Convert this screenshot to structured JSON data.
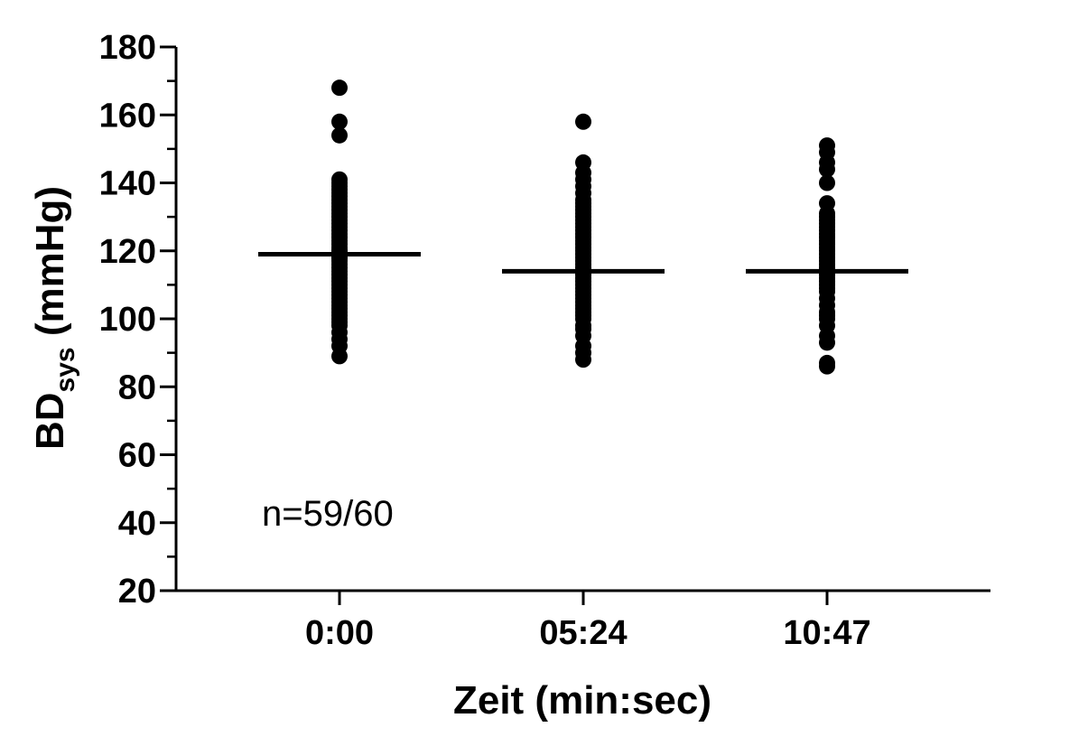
{
  "chart_data": {
    "type": "scatter",
    "xlabel": "Zeit (min:sec)",
    "ylabel": {
      "main": "BD",
      "sub": "sys",
      "unit": " (mmHg)"
    },
    "ylim": [
      20,
      180
    ],
    "yticks": [
      "20",
      "40",
      "60",
      "80",
      "100",
      "120",
      "140",
      "160",
      "180"
    ],
    "categories": [
      "0:00",
      "05:24",
      "10:47"
    ],
    "annotation": "n=59/60",
    "grid": false,
    "legend": "none",
    "point_color": "#000000",
    "series": [
      {
        "category": "0:00",
        "mean": 119,
        "values": [
          89,
          92,
          94,
          96,
          98,
          99,
          100,
          101,
          102,
          103,
          104,
          105,
          106,
          107,
          108,
          109,
          110,
          111,
          112,
          113,
          114,
          115,
          116,
          117,
          118,
          118,
          119,
          119,
          120,
          120,
          121,
          122,
          123,
          124,
          125,
          126,
          127,
          128,
          129,
          130,
          131,
          132,
          133,
          134,
          135,
          136,
          137,
          138,
          139,
          140,
          141,
          154,
          158,
          168
        ]
      },
      {
        "category": "05:24",
        "mean": 114,
        "values": [
          88,
          90,
          92,
          95,
          97,
          98,
          100,
          101,
          102,
          103,
          104,
          105,
          106,
          107,
          108,
          109,
          110,
          111,
          112,
          113,
          114,
          114,
          115,
          116,
          117,
          118,
          119,
          120,
          121,
          122,
          123,
          124,
          125,
          126,
          127,
          128,
          129,
          130,
          131,
          132,
          133,
          134,
          135,
          137,
          139,
          141,
          143,
          146,
          158
        ]
      },
      {
        "category": "10:47",
        "mean": 114,
        "values": [
          86,
          87,
          93,
          95,
          98,
          100,
          101,
          102,
          104,
          106,
          108,
          109,
          110,
          111,
          112,
          113,
          114,
          115,
          116,
          117,
          118,
          119,
          120,
          121,
          122,
          123,
          124,
          125,
          126,
          127,
          128,
          129,
          130,
          131,
          134,
          140,
          144,
          146,
          149,
          151
        ]
      }
    ]
  }
}
